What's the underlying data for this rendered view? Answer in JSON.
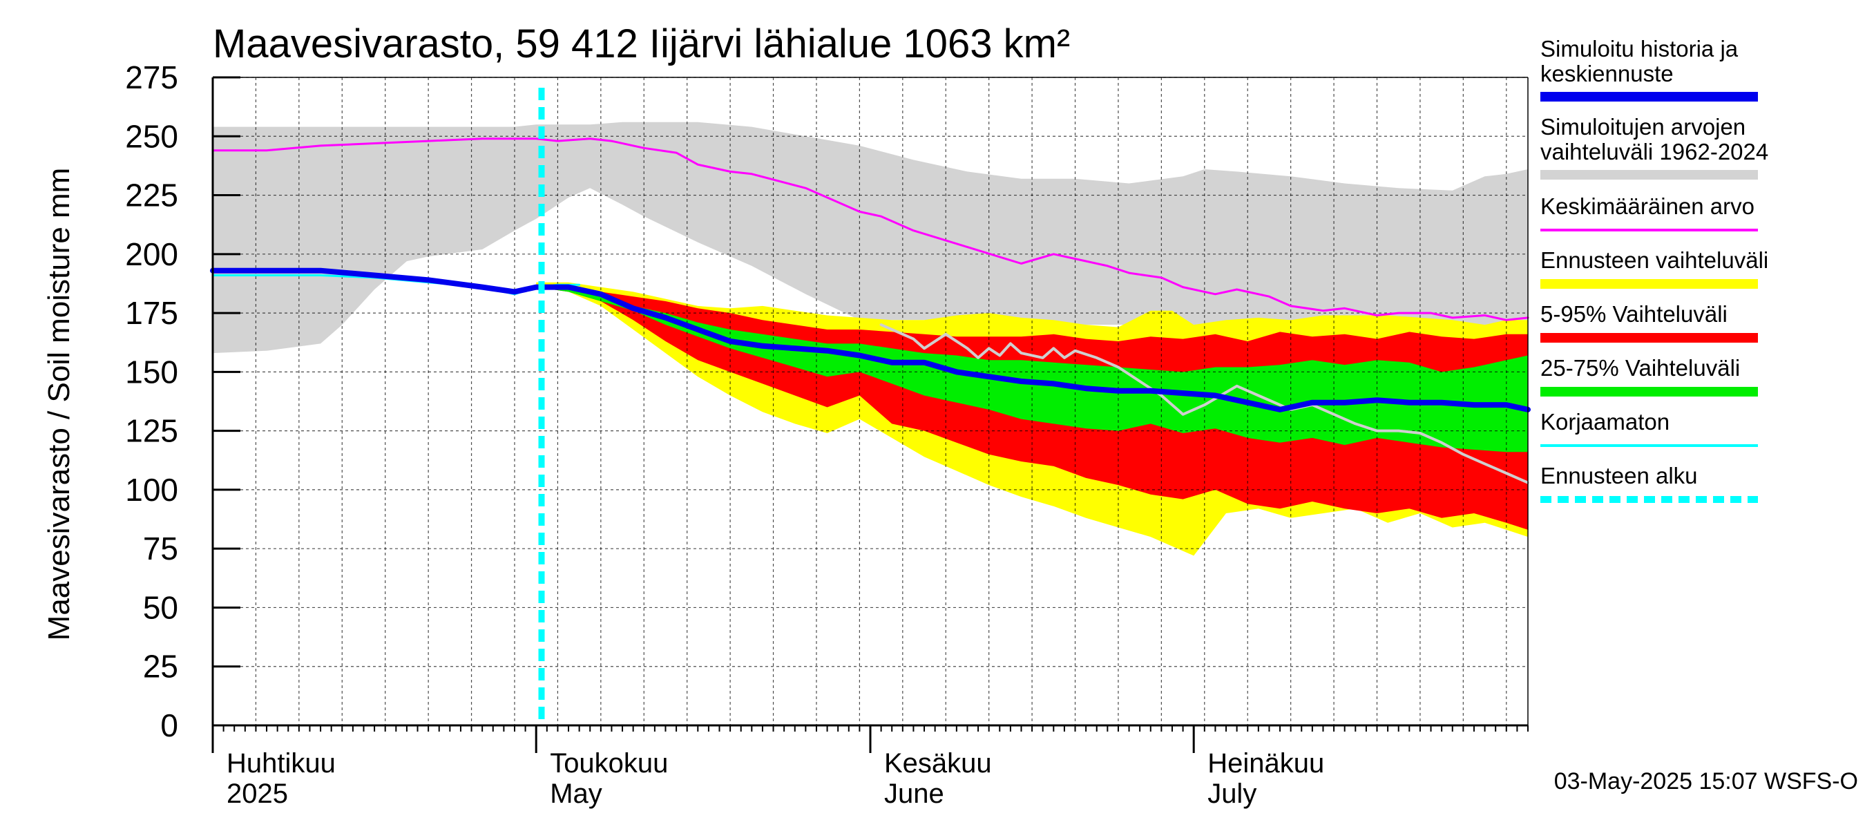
{
  "chart_data": {
    "type": "area",
    "title": "Maavesivarasto, 59 412 Iijärvi lähialue 1063 km²",
    "ylabel": "Maavesivarasto / Soil moisture   mm",
    "ylim": [
      0,
      275
    ],
    "yticks": [
      0,
      25,
      50,
      75,
      100,
      125,
      150,
      175,
      200,
      225,
      250,
      275
    ],
    "xlim_days": [
      0,
      122
    ],
    "month_labels": [
      {
        "fi": "Huhtikuu",
        "en": "2025",
        "day": 0
      },
      {
        "fi": "Toukokuu",
        "en": "May",
        "day": 30
      },
      {
        "fi": "Kesäkuu",
        "en": "June",
        "day": 61
      },
      {
        "fi": "Heinäkuu",
        "en": "July",
        "day": 91
      }
    ],
    "forecast_start_day": 30.5,
    "footer": "03-May-2025 15:07 WSFS-O",
    "series": [
      {
        "name": "Simuloitujen arvojen vaihteluväli 1962-2024",
        "kind": "band",
        "color": "#d3d3d3",
        "x": [
          0,
          5,
          10,
          12,
          15,
          18,
          20,
          25,
          28,
          30,
          33,
          35,
          38,
          40,
          45,
          50,
          55,
          60,
          65,
          70,
          75,
          80,
          85,
          90,
          92,
          95,
          100,
          105,
          110,
          115,
          118,
          120,
          122
        ],
        "upper": [
          254,
          254,
          254,
          254,
          254,
          254,
          254,
          254,
          254,
          255,
          255,
          255,
          256,
          256,
          256,
          254,
          250,
          246,
          240,
          235,
          232,
          232,
          230,
          233,
          236,
          235,
          233,
          230,
          228,
          227,
          233,
          234,
          236
        ],
        "lower": [
          158,
          159,
          162,
          170,
          185,
          197,
          199,
          202,
          210,
          215,
          224,
          228,
          221,
          216,
          205,
          195,
          183,
          172,
          172,
          172,
          170,
          170,
          170,
          170,
          162,
          168,
          170,
          170,
          170,
          170,
          170,
          170,
          170
        ]
      },
      {
        "name": "Ennusteen vaihteluväli",
        "kind": "band",
        "color": "#ffff00",
        "x": [
          30,
          33,
          36,
          39,
          42,
          45,
          48,
          51,
          54,
          57,
          60,
          63,
          66,
          69,
          72,
          75,
          78,
          81,
          84,
          87,
          89,
          91,
          94,
          97,
          100,
          103,
          106,
          109,
          112,
          115,
          118,
          120,
          122
        ],
        "upper": [
          188,
          188,
          186,
          184,
          181,
          178,
          177,
          178,
          176,
          174,
          173,
          172,
          172,
          174,
          175,
          173,
          172,
          170,
          169,
          176,
          176,
          170,
          172,
          173,
          172,
          174,
          174,
          174,
          173,
          172,
          170,
          172,
          172
        ],
        "lower": [
          186,
          184,
          178,
          168,
          158,
          148,
          140,
          133,
          128,
          124,
          130,
          122,
          114,
          108,
          102,
          97,
          93,
          88,
          84,
          80,
          76,
          72,
          90,
          92,
          88,
          90,
          92,
          86,
          90,
          84,
          86,
          83,
          80
        ]
      },
      {
        "name": "5-95% Vaihteluväli",
        "kind": "band",
        "color": "#ff0000",
        "x": [
          30,
          33,
          36,
          39,
          42,
          45,
          48,
          51,
          54,
          57,
          60,
          63,
          66,
          69,
          72,
          75,
          78,
          81,
          84,
          87,
          90,
          93,
          96,
          99,
          102,
          105,
          108,
          111,
          114,
          117,
          120,
          122
        ],
        "upper": [
          187,
          186,
          184,
          182,
          180,
          177,
          175,
          172,
          170,
          168,
          168,
          167,
          166,
          165,
          165,
          165,
          166,
          164,
          163,
          165,
          164,
          166,
          163,
          167,
          165,
          166,
          164,
          167,
          165,
          164,
          166,
          166
        ],
        "lower": [
          186,
          184,
          180,
          172,
          163,
          155,
          150,
          145,
          140,
          135,
          140,
          128,
          125,
          120,
          115,
          112,
          110,
          105,
          102,
          98,
          96,
          100,
          94,
          92,
          95,
          92,
          90,
          92,
          88,
          90,
          86,
          83
        ]
      },
      {
        "name": "25-75% Vaihteluväli",
        "kind": "band",
        "color": "#00ee00",
        "x": [
          30,
          33,
          36,
          39,
          42,
          45,
          48,
          51,
          54,
          57,
          60,
          63,
          66,
          69,
          72,
          75,
          78,
          81,
          84,
          87,
          90,
          93,
          96,
          99,
          102,
          105,
          108,
          111,
          114,
          117,
          120,
          122
        ],
        "upper": [
          187,
          185,
          182,
          178,
          175,
          171,
          168,
          166,
          164,
          162,
          162,
          160,
          158,
          157,
          155,
          155,
          154,
          153,
          152,
          151,
          150,
          152,
          152,
          153,
          155,
          153,
          155,
          154,
          150,
          152,
          155,
          157
        ],
        "lower": [
          186,
          184,
          180,
          176,
          170,
          165,
          160,
          156,
          152,
          148,
          150,
          145,
          140,
          137,
          134,
          130,
          128,
          126,
          125,
          128,
          124,
          126,
          122,
          120,
          122,
          119,
          122,
          120,
          118,
          117,
          116,
          116
        ]
      },
      {
        "name": "Keskimääräinen arvo",
        "kind": "line",
        "color": "#ff00ff",
        "width": 3,
        "x": [
          0,
          5,
          10,
          15,
          20,
          25,
          30,
          32,
          35,
          37,
          40,
          43,
          45,
          48,
          50,
          55,
          60,
          62,
          65,
          70,
          75,
          78,
          80,
          83,
          85,
          88,
          90,
          93,
          95,
          98,
          100,
          103,
          105,
          108,
          110,
          113,
          115,
          118,
          120,
          122
        ],
        "y": [
          244,
          244,
          246,
          247,
          248,
          249,
          249,
          248,
          249,
          248,
          245,
          243,
          238,
          235,
          234,
          228,
          218,
          216,
          210,
          203,
          196,
          200,
          198,
          195,
          192,
          190,
          186,
          183,
          185,
          182,
          178,
          176,
          177,
          174,
          175,
          175,
          173,
          174,
          172,
          173
        ]
      },
      {
        "name": "Korjaamaton",
        "kind": "line",
        "color": "#00ffff",
        "width": 3,
        "x": [
          0,
          5,
          10,
          15,
          20,
          25,
          28,
          30,
          32,
          34
        ],
        "y": [
          191,
          191,
          191,
          190,
          188,
          186,
          183,
          186,
          187,
          187
        ]
      },
      {
        "name": "grey-forecast-line",
        "kind": "line",
        "color": "#cfcfcf",
        "width": 4,
        "x": [
          62,
          65,
          66,
          68,
          70,
          71,
          72,
          73,
          74,
          75,
          77,
          78,
          79,
          80,
          82,
          84,
          86,
          88,
          90,
          92,
          95,
          97,
          100,
          102,
          104,
          106,
          108,
          110,
          112,
          114,
          116,
          118,
          120,
          122
        ],
        "y": [
          170,
          164,
          160,
          166,
          160,
          156,
          160,
          157,
          162,
          158,
          156,
          160,
          156,
          159,
          156,
          152,
          146,
          140,
          132,
          136,
          144,
          140,
          134,
          136,
          132,
          128,
          125,
          125,
          124,
          120,
          115,
          111,
          107,
          103
        ]
      },
      {
        "name": "Simuloitu historia ja keskiennuste",
        "kind": "line",
        "color": "#0000ee",
        "width": 8,
        "x": [
          0,
          5,
          10,
          15,
          20,
          25,
          28,
          30,
          33,
          36,
          39,
          42,
          45,
          48,
          51,
          54,
          57,
          60,
          63,
          66,
          69,
          72,
          75,
          78,
          81,
          84,
          87,
          90,
          93,
          96,
          99,
          102,
          105,
          108,
          111,
          114,
          117,
          120,
          122
        ],
        "y": [
          193,
          193,
          193,
          191,
          189,
          186,
          184,
          186,
          186,
          183,
          177,
          173,
          168,
          163,
          161,
          160,
          159,
          157,
          154,
          154,
          150,
          148,
          146,
          145,
          143,
          142,
          142,
          141,
          140,
          137,
          134,
          137,
          137,
          138,
          137,
          137,
          136,
          136,
          134
        ]
      }
    ],
    "legend": [
      {
        "label": "Simuloitu historia ja keskiennuste",
        "color": "#0000ee",
        "style": "thick"
      },
      {
        "label": "Simuloitujen arvojen vaihteluväli 1962-2024",
        "color": "#d3d3d3",
        "style": "thick"
      },
      {
        "label": "Keskimääräinen arvo",
        "color": "#ff00ff",
        "style": "thin"
      },
      {
        "label": "Ennusteen vaihteluväli",
        "color": "#ffff00",
        "style": "thick"
      },
      {
        "label": "5-95% Vaihteluväli",
        "color": "#ff0000",
        "style": "thick"
      },
      {
        "label": "25-75% Vaihteluväli",
        "color": "#00ee00",
        "style": "thick"
      },
      {
        "label": "Korjaamaton",
        "color": "#00ffff",
        "style": "thin"
      },
      {
        "label": "Ennusteen alku",
        "color": "#00ffff",
        "style": "dashed"
      }
    ]
  }
}
